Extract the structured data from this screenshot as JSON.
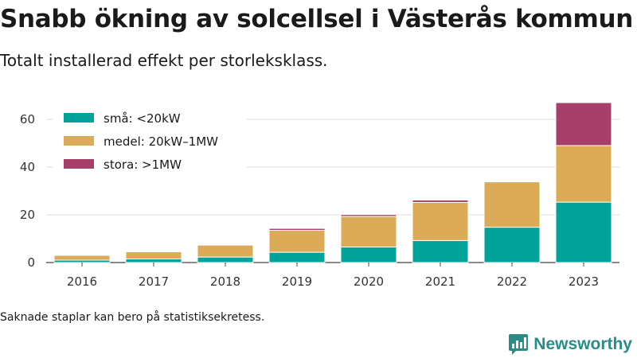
{
  "header": {
    "title": "Snabb ökning av solcellsel i Västerås kommun",
    "subtitle": "Totalt installerad effekt per storleksklass."
  },
  "footnote": "Saknade staplar kan bero på statistiksekretess.",
  "brand": {
    "name": "Newsworthy",
    "icon": "newsworthy-logo-icon",
    "color": "#2b8c86"
  },
  "chart_data": {
    "type": "bar",
    "stacked": true,
    "categories": [
      "2016",
      "2017",
      "2018",
      "2019",
      "2020",
      "2021",
      "2022",
      "2023"
    ],
    "series": [
      {
        "name": "små: <20kW",
        "color": "#00a39a",
        "values": [
          1.0,
          1.5,
          2.3,
          4.3,
          6.5,
          9.2,
          14.8,
          25.3
        ]
      },
      {
        "name": "medel: 20kW–1MW",
        "color": "#dbab57",
        "values": [
          2.0,
          3.0,
          5.0,
          9.2,
          12.8,
          16.0,
          19.0,
          23.7
        ]
      },
      {
        "name": "stora: >1MW",
        "color": "#a63f6a",
        "values": [
          0.3,
          0.0,
          0.0,
          0.8,
          0.8,
          1.0,
          0.0,
          18.0
        ]
      }
    ],
    "yticks": [
      0,
      20,
      40,
      60
    ],
    "ylim": [
      0,
      70
    ],
    "grid": true,
    "legend": "top-left",
    "xlabel": "",
    "ylabel": ""
  }
}
